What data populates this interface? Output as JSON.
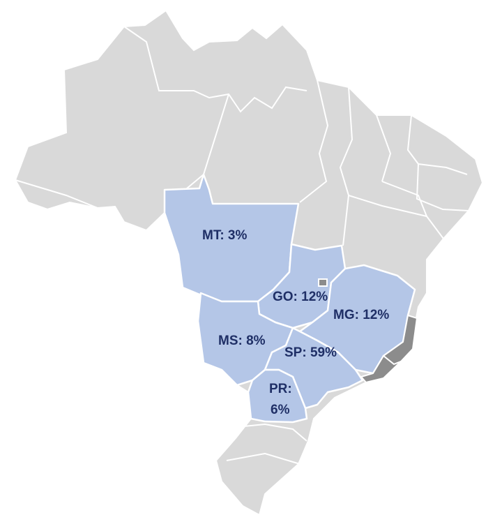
{
  "map": {
    "states": [
      {
        "code": "MT",
        "line1": "MT: 3%"
      },
      {
        "code": "GO",
        "line1": "GO: 12%"
      },
      {
        "code": "MG",
        "line1": "MG: 12%"
      },
      {
        "code": "MS",
        "line1": "MS: 8%"
      },
      {
        "code": "SP",
        "line1": "SP: 59%"
      },
      {
        "code": "PR",
        "line1": "PR:",
        "line2": "6%"
      }
    ],
    "colors": {
      "land": "#d9d9d9",
      "highlight": "#b4c6e7",
      "dark_gray": "#8c8c8c",
      "border": "#ffffff",
      "label_text": "#1f2f66"
    }
  }
}
